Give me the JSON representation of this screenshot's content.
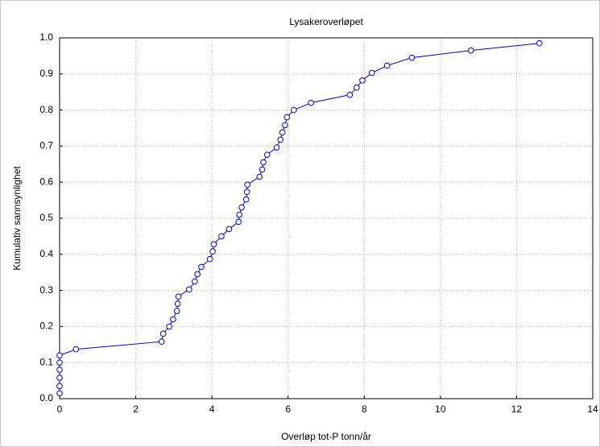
{
  "chart_data": {
    "type": "line",
    "title": "Lysakeroverløpet",
    "xlabel": "Overløp tot-P tonn/år",
    "ylabel": "Kumulativ sannsynlighet",
    "series": [
      {
        "color": "#0000cc",
        "x": [
          0,
          0,
          0,
          0,
          0,
          0,
          0.43,
          2.68,
          2.72,
          2.88,
          2.98,
          3.08,
          3.1,
          3.12,
          3.4,
          3.55,
          3.62,
          3.72,
          3.95,
          4.02,
          4.05,
          4.25,
          4.45,
          4.7,
          4.72,
          4.78,
          4.9,
          4.92,
          4.93,
          5.25,
          5.32,
          5.35,
          5.45,
          5.7,
          5.8,
          5.85,
          5.92,
          5.97,
          6.15,
          6.6,
          7.62,
          7.8,
          7.95,
          8.2,
          8.6,
          9.25,
          10.8,
          12.6
        ],
        "values": [
          0.015,
          0.035,
          0.058,
          0.08,
          0.1,
          0.12,
          0.137,
          0.158,
          0.18,
          0.2,
          0.22,
          0.243,
          0.263,
          0.283,
          0.303,
          0.325,
          0.345,
          0.365,
          0.387,
          0.408,
          0.428,
          0.45,
          0.47,
          0.49,
          0.51,
          0.53,
          0.552,
          0.573,
          0.593,
          0.615,
          0.635,
          0.655,
          0.676,
          0.696,
          0.718,
          0.738,
          0.758,
          0.78,
          0.8,
          0.82,
          0.842,
          0.862,
          0.882,
          0.903,
          0.923,
          0.945,
          0.965,
          0.985
        ]
      }
    ],
    "xlim": [
      0,
      14
    ],
    "xticks": [
      0,
      2,
      4,
      6,
      8,
      10,
      12,
      14
    ],
    "ylim": [
      0,
      1.0
    ],
    "yticks": [
      {
        "value": 0,
        "label": "0.0"
      },
      0.1,
      0.2,
      0.3,
      0.4,
      0.5,
      0.6,
      0.7,
      0.8,
      0.9,
      {
        "value": 1,
        "label": "1.0"
      }
    ],
    "grid": true
  }
}
